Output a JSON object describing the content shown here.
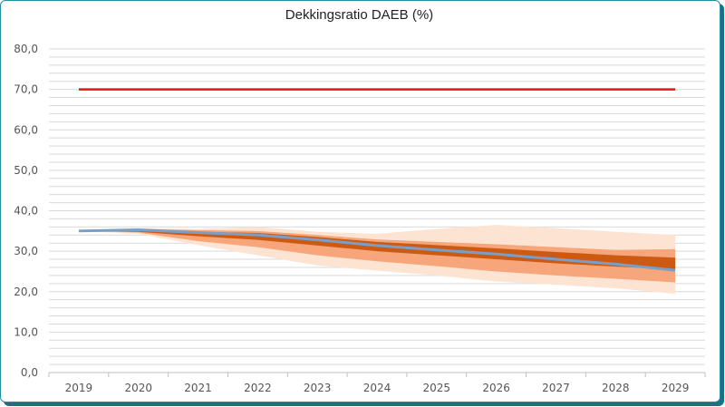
{
  "chart_data": {
    "type": "area",
    "title": "Dekkingsratio DAEB (%)",
    "xlabel": "",
    "ylabel": "",
    "x": [
      "2019",
      "2020",
      "2021",
      "2022",
      "2023",
      "2024",
      "2025",
      "2026",
      "2027",
      "2028",
      "2029"
    ],
    "ylim": [
      0,
      80
    ],
    "yticks": [
      "0,0",
      "10,0",
      "20,0",
      "30,0",
      "40,0",
      "50,0",
      "60,0",
      "70,0",
      "80,0"
    ],
    "grid": true,
    "legend": "none",
    "reference_line": {
      "value": 70,
      "color": "#e0161b"
    },
    "central_line": {
      "values": [
        35,
        35.3,
        34.6,
        34,
        32.8,
        31.4,
        30.3,
        29.3,
        28.0,
        26.8,
        25.3
      ],
      "color": "#7a9ec4"
    },
    "bands": [
      {
        "level": "outer",
        "color": "#fde3d2",
        "lower": [
          35,
          34.3,
          31.5,
          29,
          26.5,
          25.2,
          24,
          22.5,
          21.7,
          20.8,
          19.5
        ],
        "upper": [
          35,
          35.7,
          35.5,
          36,
          34.8,
          34.3,
          35.5,
          36.5,
          35.7,
          34.8,
          34.0
        ]
      },
      {
        "level": "middle",
        "color": "#f6a67a",
        "lower": [
          35,
          34.6,
          32.5,
          31,
          29,
          27.5,
          26.3,
          25,
          24,
          23.2,
          22.3
        ],
        "upper": [
          35,
          35.5,
          35.2,
          35,
          34,
          32.9,
          32.3,
          31.7,
          31,
          30.3,
          30.5
        ]
      },
      {
        "level": "inner",
        "color": "#cc5a12",
        "lower": [
          35,
          34.8,
          33.7,
          32.8,
          31.4,
          30,
          29,
          28,
          27,
          26.2,
          25.5
        ],
        "upper": [
          35,
          35.3,
          34.8,
          34.5,
          33.5,
          32.3,
          31.5,
          30.7,
          29.8,
          29,
          28.4
        ]
      }
    ],
    "colors": {
      "grid": "#d9d9d9",
      "axis": "#bfbfbf"
    }
  }
}
